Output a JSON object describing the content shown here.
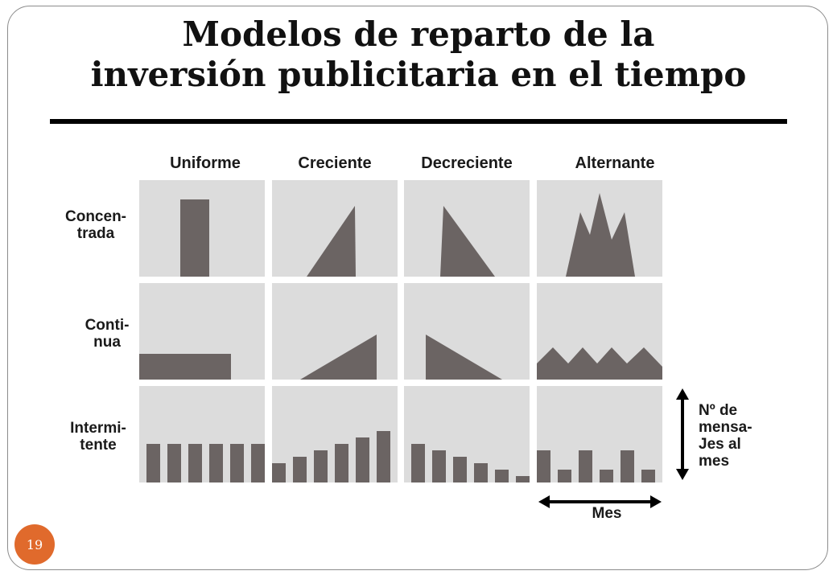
{
  "title": {
    "line1": "Modelos de reparto de la",
    "line2": "inversión publicitaria en el tiempo"
  },
  "columns": [
    "Uniforme",
    "Creciente",
    "Decreciente",
    "Alternante"
  ],
  "rows": [
    {
      "line1": "Concen-",
      "line2": "trada"
    },
    {
      "line1": "Conti-",
      "line2": "nua"
    },
    {
      "line1": "Intermi-",
      "line2": "tente"
    }
  ],
  "legend": {
    "y_axis": [
      "Nº de",
      "mensa-",
      "Jes al",
      "mes"
    ],
    "x_axis": "Mes"
  },
  "page_number": "19",
  "colors": {
    "panel": "#dcdcdc",
    "shape": "#6b6463",
    "accent": "#e06a2c",
    "text": "#1a1a1a"
  }
}
